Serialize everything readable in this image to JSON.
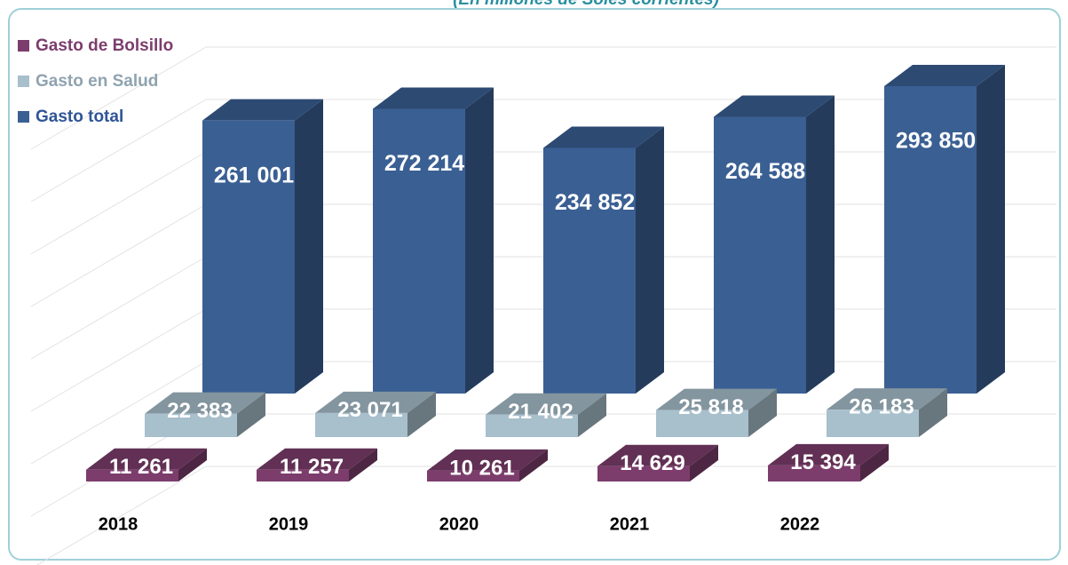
{
  "chart_data": {
    "type": "bar3d",
    "subtitle": "(En millones de Soles corrientes)",
    "categories": [
      "2018",
      "2019",
      "2020",
      "2021",
      "2022"
    ],
    "series": [
      {
        "name": "Gasto de Bolsillo",
        "color": "#7c3d6c",
        "values": [
          11261,
          11257,
          10261,
          14629,
          15394
        ],
        "value_labels": [
          "11 261",
          "11 257",
          "10 261",
          "14 629",
          "15 394"
        ]
      },
      {
        "name": "Gasto en Salud",
        "color": "#a8bfcc",
        "values": [
          22383,
          23071,
          21402,
          25818,
          26183
        ],
        "value_labels": [
          "22 383",
          "23 071",
          "21 402",
          "25 818",
          "26 183"
        ]
      },
      {
        "name": "Gasto total",
        "color": "#3a5f93",
        "values": [
          261001,
          272214,
          234852,
          264588,
          293850
        ],
        "value_labels": [
          "261 001",
          "272 214",
          "234 852",
          "264 588",
          "293 850"
        ]
      }
    ],
    "grid": true
  }
}
